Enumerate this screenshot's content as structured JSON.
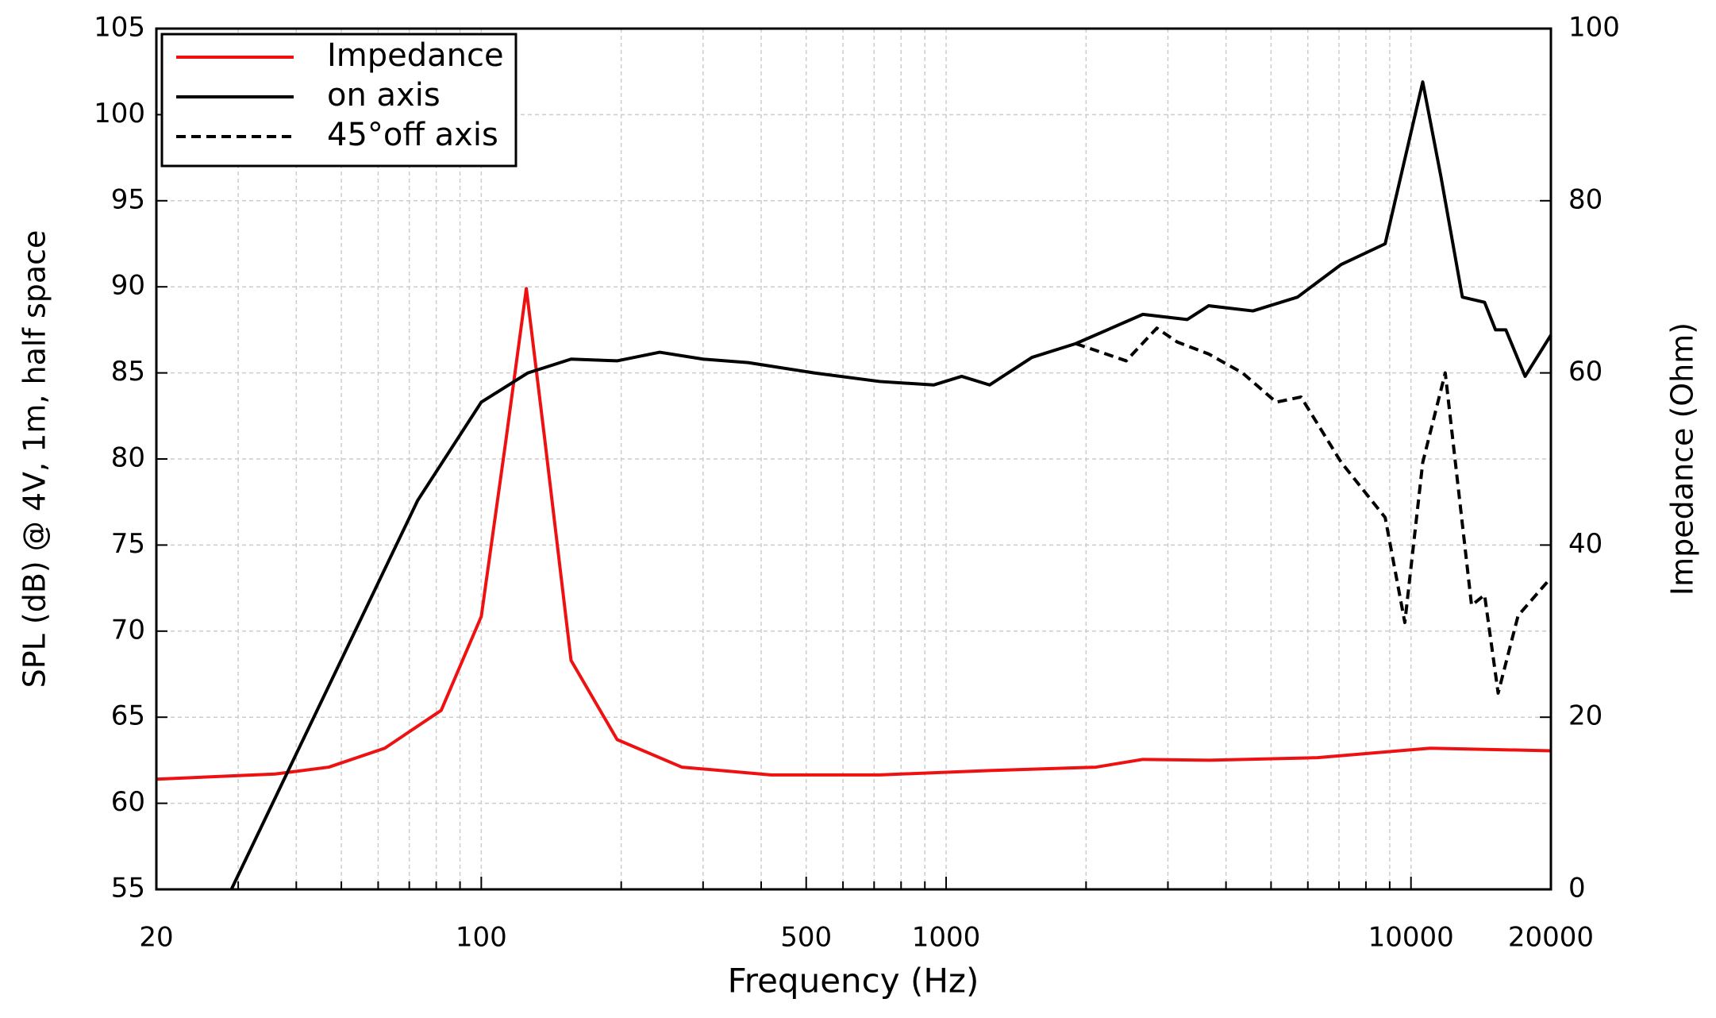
{
  "chart_data": {
    "type": "line",
    "x_label": "Frequency (Hz)",
    "y_label": "SPL (dB) @ 4V, 1m, half space",
    "y2_label": "Impedance (Ohm)",
    "log_x": true,
    "grid": true,
    "legend": "upper left",
    "xlim": [
      20,
      20000
    ],
    "xticks": [
      20,
      100,
      500,
      1000,
      10000,
      20000
    ],
    "xminorticks": [
      30,
      40,
      50,
      60,
      70,
      80,
      90,
      200,
      300,
      400,
      600,
      700,
      800,
      900,
      2000,
      3000,
      4000,
      5000,
      6000,
      7000,
      8000,
      9000
    ],
    "ylim": [
      55,
      105
    ],
    "yticks": [
      55,
      60,
      65,
      70,
      75,
      80,
      85,
      90,
      95,
      100,
      105
    ],
    "y2lim": [
      0,
      100
    ],
    "y2ticks": [
      0,
      20,
      40,
      60,
      80,
      100
    ],
    "series": [
      {
        "name": "Impedance",
        "color": "#ee1111",
        "dash": false,
        "axis": "y2",
        "x": [
          20,
          36,
          47,
          62,
          82,
          100,
          113,
          125,
          137,
          156,
          196,
          270,
          420,
          720,
          1240,
          2100,
          2650,
          3670,
          6300,
          11000,
          20000
        ],
        "values": [
          12.8,
          13.4,
          14.2,
          16.4,
          20.8,
          31.7,
          52.2,
          69.8,
          52.2,
          26.6,
          17.4,
          14.2,
          13.3,
          13.3,
          13.8,
          14.2,
          15.1,
          15.0,
          15.3,
          16.4,
          16.1
        ]
      },
      {
        "name": "on axis",
        "color": "#000000",
        "dash": false,
        "axis": "y",
        "x": [
          29,
          73,
          100,
          126,
          156,
          196,
          242,
          300,
          375,
          520,
          720,
          940,
          1080,
          1240,
          1530,
          1900,
          2650,
          3300,
          3670,
          4570,
          5700,
          7080,
          8800,
          10600,
          11600,
          12900,
          14400,
          15200,
          16000,
          17600,
          20000
        ],
        "values": [
          55,
          77.6,
          83.3,
          85.0,
          85.8,
          85.7,
          86.2,
          85.8,
          85.6,
          85.0,
          84.5,
          84.3,
          84.8,
          84.3,
          85.9,
          86.7,
          88.4,
          88.1,
          88.9,
          88.6,
          89.4,
          91.3,
          92.5,
          101.9,
          96.4,
          89.4,
          89.1,
          87.5,
          87.5,
          84.8,
          87.2
        ]
      },
      {
        "name": "45°off axis",
        "color": "#000000",
        "dash": true,
        "axis": "y",
        "x": [
          1900,
          2100,
          2440,
          2840,
          3140,
          3670,
          4340,
          5130,
          5800,
          7080,
          8800,
          9700,
          10600,
          11850,
          13500,
          14400,
          15400,
          17000,
          20000
        ],
        "values": [
          86.7,
          86.3,
          85.7,
          87.6,
          86.8,
          86.1,
          85.0,
          83.3,
          83.6,
          79.8,
          76.6,
          70.5,
          79.8,
          85.0,
          71.5,
          72.1,
          66.4,
          70.9,
          73.1
        ]
      }
    ]
  }
}
